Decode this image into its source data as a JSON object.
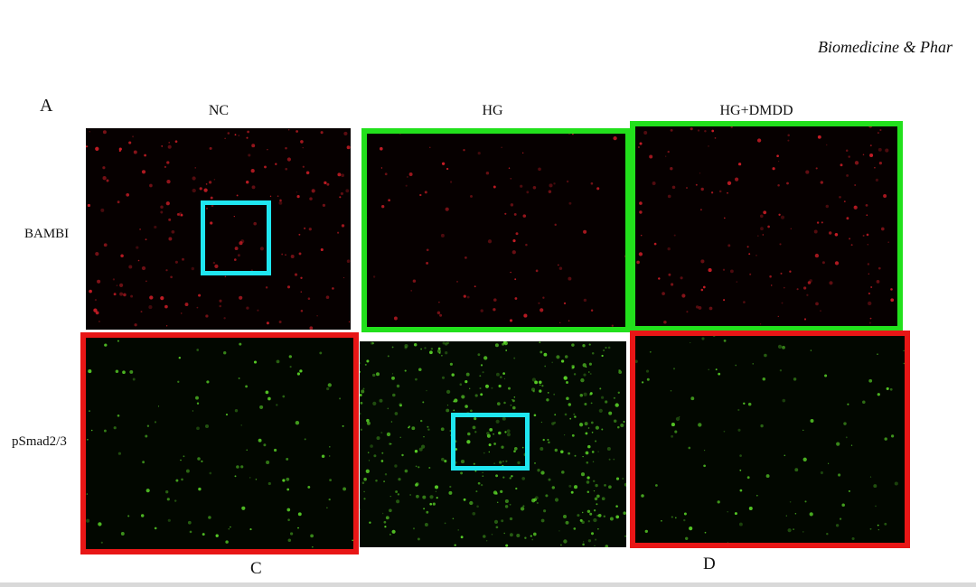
{
  "header": {
    "journal": "Biomedicine & Phar"
  },
  "figure": {
    "panel_letters": {
      "a": "A",
      "c": "C",
      "d": "D"
    },
    "columns": [
      "NC",
      "HG",
      "HG+DMDD"
    ],
    "rows": [
      "BAMBI",
      "pSmad2/3"
    ]
  },
  "colors": {
    "red_stain": "#e0202a",
    "green_stain": "#5fe02a",
    "highlight_green": "#22e01c",
    "highlight_red": "#e81616",
    "highlight_cyan": "#1fe6f0"
  }
}
